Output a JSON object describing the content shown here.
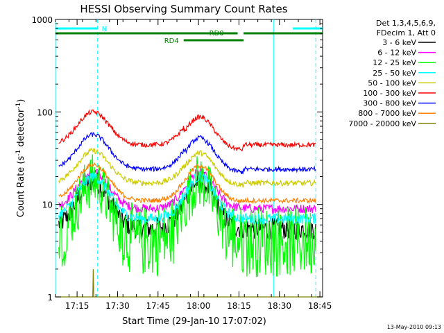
{
  "chart_data": {
    "type": "line",
    "title": "HESSI Observing Summary Count Rates",
    "xlabel": "Start Time (29-Jan-10 17:07:02)",
    "ylabel": "Count Rate (s",
    "ylabel_sup1": "-1",
    "ylabel_mid": " detector",
    "ylabel_sup2": "-1",
    "ylabel_end": ")",
    "yscale": "log",
    "ylim": [
      1,
      1000
    ],
    "xlim_minutes": [
      0,
      99
    ],
    "x_tick_labels": [
      "17:15",
      "17:30",
      "17:45",
      "18:00",
      "18:15",
      "18:30",
      "18:45"
    ],
    "x_tick_minutes": [
      8,
      23,
      38,
      53,
      68,
      83,
      98
    ],
    "y_tick_labels": [
      "1",
      "10",
      "100",
      "1000"
    ],
    "y_tick_values": [
      1,
      10,
      100,
      1000
    ],
    "legend_header": [
      "Det 1,3,4,5,6,9,",
      "FDecim 1, Att 0"
    ],
    "legend_position": "right-outside",
    "series": [
      {
        "name": "3 - 6 keV",
        "color": "#000000",
        "peak": 18,
        "base": 5.5,
        "noise": 0.12,
        "j1": 0,
        "j2": 0
      },
      {
        "name": "6 - 12 keV",
        "color": "#ff00ff",
        "peak": 22,
        "base": 9,
        "noise": 0.05,
        "j1": 0,
        "j2": 0
      },
      {
        "name": "12 - 25 keV",
        "color": "#00ff00",
        "peak": 18,
        "base": 4,
        "noise": 0.3,
        "j1": 0,
        "j2": 0
      },
      {
        "name": "25 - 50 keV",
        "color": "#00ffff",
        "peak": 20,
        "base": 7,
        "noise": 0.06,
        "j1": 0,
        "j2": 0
      },
      {
        "name": "50 - 100 keV",
        "color": "#cccc00",
        "peak": 38,
        "base": 17,
        "noise": 0.03,
        "j1": 0.05,
        "j2": 0.05
      },
      {
        "name": "100 - 300 keV",
        "color": "#ff0000",
        "peak": 100,
        "base": 44,
        "noise": 0.025,
        "j1": 0.12,
        "j2": 0.12
      },
      {
        "name": "300 - 800 keV",
        "color": "#0000ff",
        "peak": 57,
        "base": 24,
        "noise": 0.025,
        "j1": 0.08,
        "j2": 0.08
      },
      {
        "name": "800 - 7000 keV",
        "color": "#ff8000",
        "peak": 27,
        "base": 11,
        "noise": 0.025,
        "j1": 0.03,
        "j2": 0.03
      },
      {
        "name": "7000 - 20000 keV",
        "color": "#808000",
        "peak": 2,
        "base": 1,
        "noise": 0,
        "j1": 0,
        "j2": 0
      }
    ],
    "flags": [
      {
        "label": "N",
        "color": "#00ffff",
        "segments": [
          [
            0,
            15.6
          ],
          [
            88,
            99
          ]
        ],
        "level": 1
      },
      {
        "label": "RD0",
        "color": "#008000",
        "segments": [
          [
            0,
            67.5
          ],
          [
            69.7,
            99
          ]
        ],
        "level": 2
      },
      {
        "label": "RD4",
        "color": "#008000",
        "segments": [
          [
            47.5,
            69.7
          ]
        ],
        "level": 3
      }
    ],
    "vertical_markers_solid": [
      0,
      80.8
    ],
    "vertical_markers_dashed": [
      15.6,
      96.5
    ]
  },
  "footer_timestamp": "13-May-2010 09:13"
}
